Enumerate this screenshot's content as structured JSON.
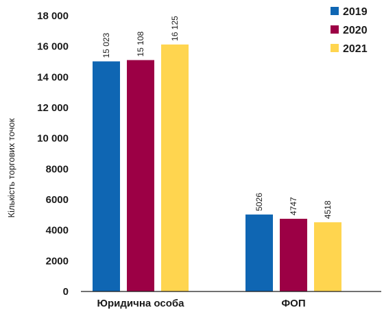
{
  "chart_data": {
    "type": "bar",
    "ylabel": "Кількість торгових точок",
    "ylim": [
      0,
      18000
    ],
    "yticks": [
      0,
      2000,
      4000,
      6000,
      8000,
      10000,
      12000,
      14000,
      16000,
      18000
    ],
    "ytick_labels": [
      "0",
      "2000",
      "4000",
      "6000",
      "8000",
      "10 000",
      "12 000",
      "14 000",
      "16 000",
      "18 000"
    ],
    "categories": [
      "Юридична особа",
      "ФОП"
    ],
    "series": [
      {
        "name": "2019",
        "color": "#0f66b3",
        "values": [
          15023,
          5026
        ],
        "labels": [
          "15 023",
          "5026"
        ]
      },
      {
        "name": "2020",
        "color": "#9c0045",
        "values": [
          15108,
          4747
        ],
        "labels": [
          "15 108",
          "4747"
        ]
      },
      {
        "name": "2021",
        "color": "#ffd54f",
        "values": [
          16125,
          4518
        ],
        "labels": [
          "16 125",
          "4518"
        ]
      }
    ],
    "legend_position": "top-right",
    "grid": false
  }
}
